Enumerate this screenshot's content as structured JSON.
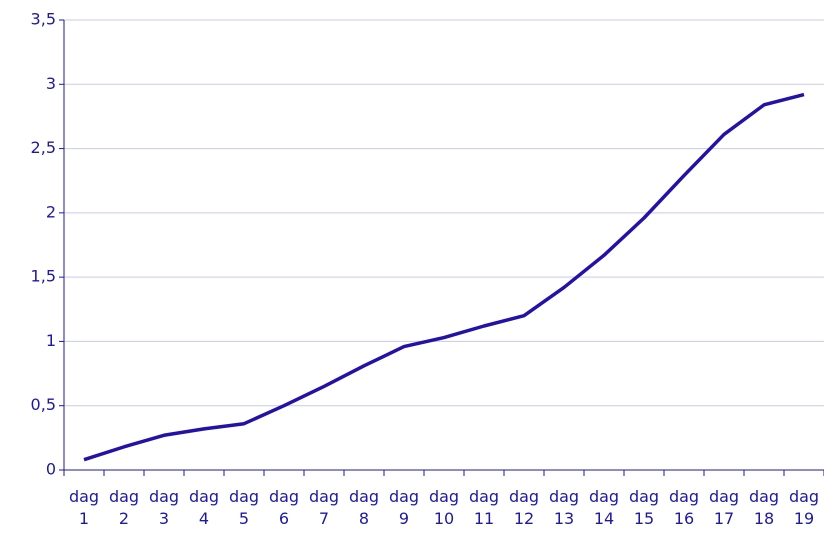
{
  "chart_data": {
    "type": "line",
    "categories": [
      "dag 1",
      "dag 2",
      "dag 3",
      "dag 4",
      "dag 5",
      "dag 6",
      "dag 7",
      "dag 8",
      "dag 9",
      "dag 10",
      "dag 11",
      "dag 12",
      "dag 13",
      "dag 14",
      "dag 15",
      "dag 16",
      "dag 17",
      "dag 18",
      "dag 19"
    ],
    "series": [
      {
        "color": "#2212a8",
        "values": [
          0.08,
          0.18,
          0.27,
          0.32,
          0.36,
          0.5,
          0.65,
          0.81,
          0.96,
          1.03,
          1.12,
          1.2,
          1.42,
          1.67,
          1.96,
          2.29,
          2.61,
          2.84,
          2.92
        ]
      }
    ],
    "ylim": [
      0,
      3.5
    ],
    "yticks": [
      0,
      {
        "value": 0.5,
        "label": "0,5"
      },
      1,
      {
        "value": 1.5,
        "label": "1,5"
      },
      2,
      {
        "value": 2.5,
        "label": "2,5"
      },
      3,
      {
        "value": 3.5,
        "label": "3,5"
      }
    ],
    "grid": true
  }
}
